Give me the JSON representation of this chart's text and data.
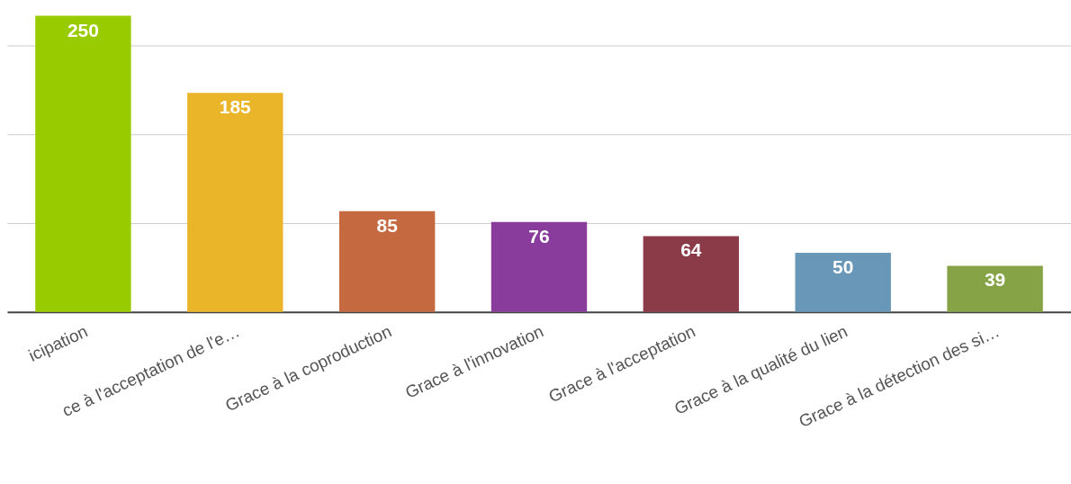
{
  "chart_data": {
    "type": "bar",
    "categories": [
      "icipation",
      "ce à l'acceptation de l'e…",
      "Grace à la coproduction",
      "Grace à l'innovation",
      "Grace à l'acceptation",
      "Grace à la qualité du lien",
      "Grace à la détection des si…"
    ],
    "values": [
      250,
      185,
      85,
      76,
      64,
      50,
      39
    ],
    "colors": [
      "#99cc00",
      "#ebb52a",
      "#c56a40",
      "#8a3c9c",
      "#8b3a47",
      "#6897b8",
      "#86a446"
    ],
    "ylim": [
      0,
      250
    ],
    "yticks": [
      {
        "value": 75,
        "label": null
      },
      {
        "value": 150,
        "label": null
      },
      {
        "value": 225,
        "label": null
      }
    ],
    "grid": "y",
    "data_labels": true,
    "tick_labels": "x",
    "legend": false
  }
}
